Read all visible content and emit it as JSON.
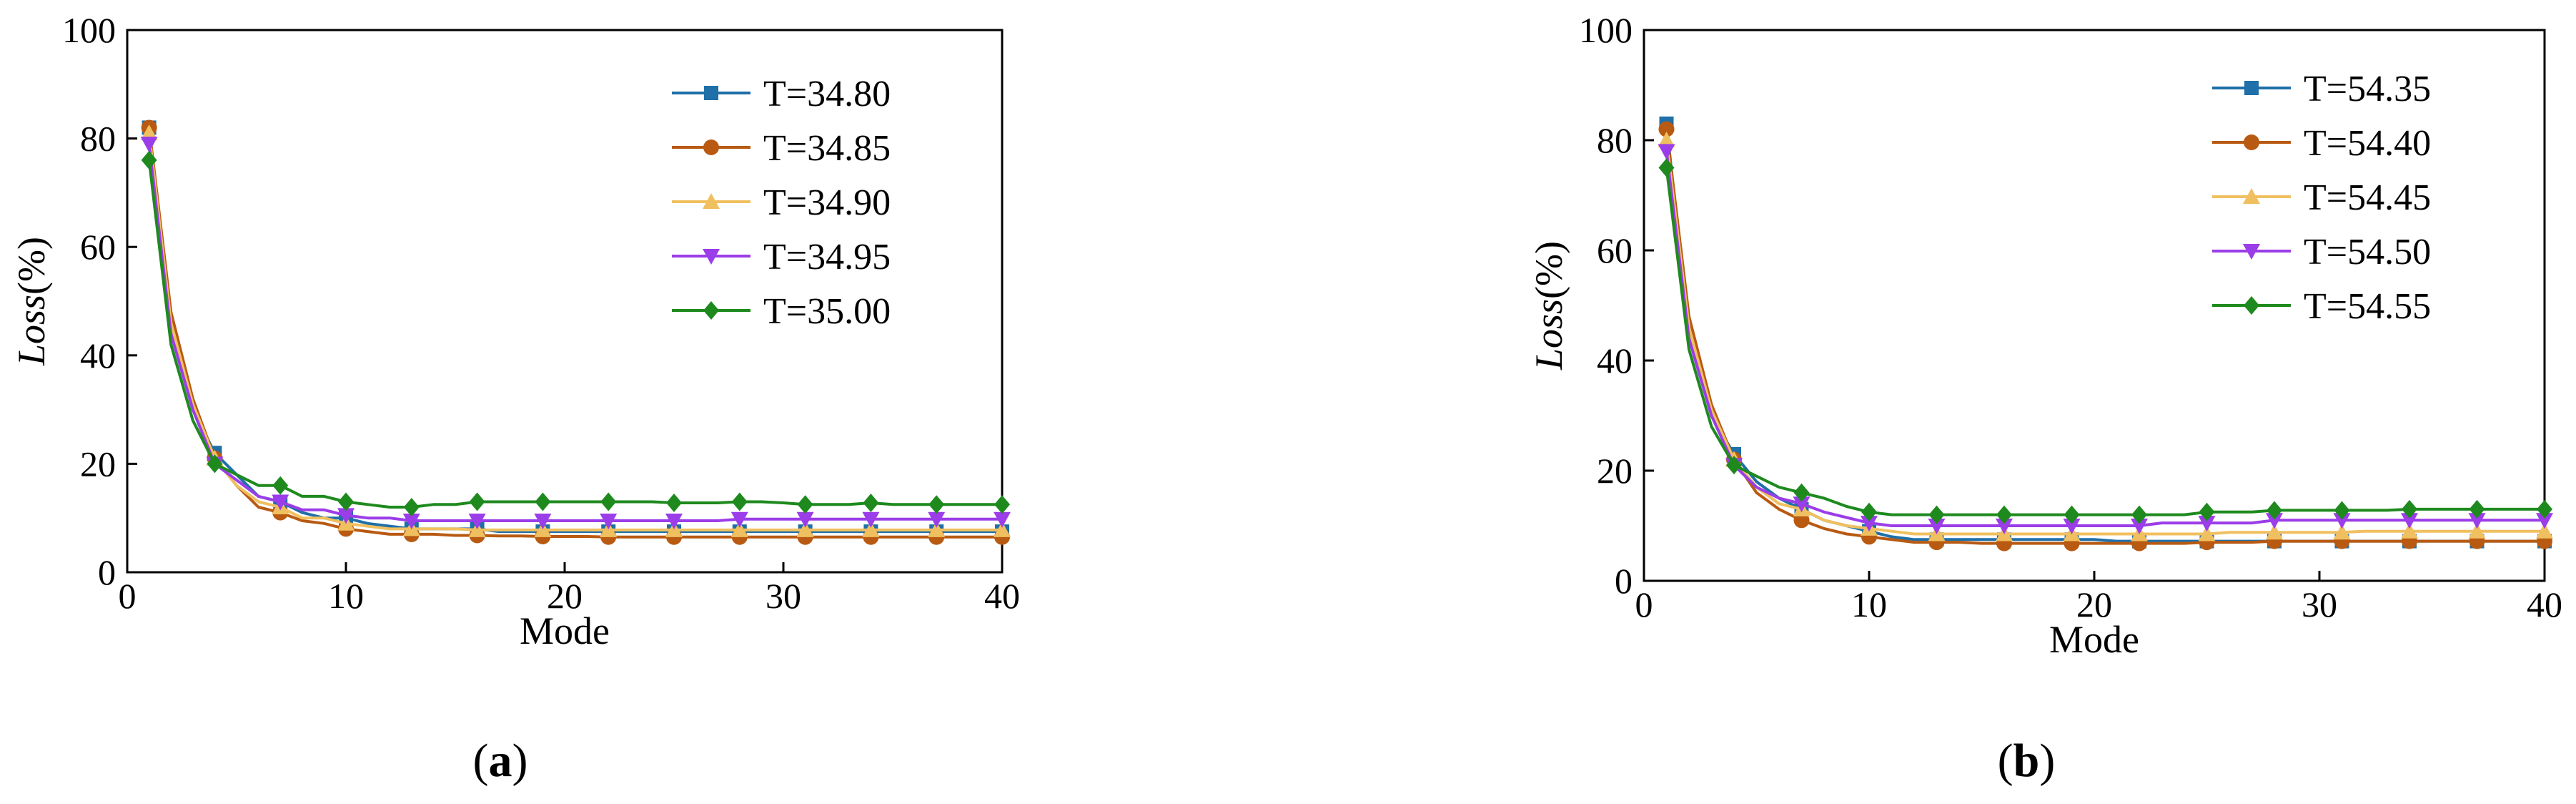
{
  "chart_data": [
    {
      "type": "line",
      "caption": {
        "open": "(",
        "letter": "a",
        "close": ")"
      },
      "xlabel": "Mode",
      "ylabel": {
        "italic": "Loss",
        "rest": "(%)"
      },
      "xlim": [
        0,
        40
      ],
      "ylim": [
        0,
        100
      ],
      "xticks": [
        0,
        10,
        20,
        30,
        40
      ],
      "yticks": [
        0,
        20,
        40,
        60,
        80,
        100
      ],
      "legend_position": "top-right",
      "series": [
        {
          "name": "T=34.80",
          "color": "#1f6fa8",
          "marker": "square",
          "x": [
            1,
            2,
            3,
            4,
            5,
            6,
            7,
            8,
            9,
            10,
            11,
            12,
            13,
            14,
            15,
            16,
            17,
            18,
            19,
            20,
            21,
            22,
            23,
            24,
            25,
            26,
            27,
            28,
            29,
            30,
            31,
            32,
            33,
            34,
            35,
            36,
            37,
            38,
            39,
            40
          ],
          "y": [
            82,
            45,
            30,
            22,
            18,
            14,
            13,
            11,
            10,
            10,
            9,
            8.5,
            8,
            8,
            8,
            8,
            7.5,
            7.5,
            7.5,
            7.5,
            7.5,
            7.5,
            7.5,
            7.5,
            7.5,
            7.5,
            7.5,
            7.5,
            7.5,
            7.5,
            7.5,
            7.5,
            7.5,
            7.5,
            7.5,
            7.5,
            7.5,
            7.5,
            7.5,
            7.5
          ]
        },
        {
          "name": "T=34.85",
          "color": "#b85a12",
          "marker": "circle",
          "x": [
            1,
            2,
            3,
            4,
            5,
            6,
            7,
            8,
            9,
            10,
            11,
            12,
            13,
            14,
            15,
            16,
            17,
            18,
            19,
            20,
            21,
            22,
            23,
            24,
            25,
            26,
            27,
            28,
            29,
            30,
            31,
            32,
            33,
            34,
            35,
            36,
            37,
            38,
            39,
            40
          ],
          "y": [
            82,
            48,
            32,
            21,
            16,
            12,
            11,
            9.5,
            9,
            8,
            7.5,
            7,
            7,
            7,
            6.8,
            6.8,
            6.7,
            6.7,
            6.6,
            6.6,
            6.6,
            6.5,
            6.5,
            6.5,
            6.5,
            6.5,
            6.5,
            6.5,
            6.5,
            6.5,
            6.5,
            6.5,
            6.5,
            6.5,
            6.5,
            6.5,
            6.5,
            6.5,
            6.5,
            6.5
          ]
        },
        {
          "name": "T=34.90",
          "color": "#f0c060",
          "marker": "triangle-up",
          "x": [
            1,
            2,
            3,
            4,
            5,
            6,
            7,
            8,
            9,
            10,
            11,
            12,
            13,
            14,
            15,
            16,
            17,
            18,
            19,
            20,
            21,
            22,
            23,
            24,
            25,
            26,
            27,
            28,
            29,
            30,
            31,
            32,
            33,
            34,
            35,
            36,
            37,
            38,
            39,
            40
          ],
          "y": [
            81,
            46,
            31,
            21,
            16,
            13,
            12,
            10,
            10,
            9,
            8.5,
            8,
            8,
            8,
            8,
            7.8,
            7.8,
            7.8,
            7.8,
            7.8,
            7.8,
            7.8,
            7.8,
            7.8,
            7.8,
            7.8,
            7.8,
            7.8,
            7.8,
            7.8,
            7.8,
            7.8,
            7.8,
            7.8,
            7.8,
            7.8,
            7.8,
            7.8,
            7.8,
            7.8
          ]
        },
        {
          "name": "T=34.95",
          "color": "#9b3de8",
          "marker": "triangle-down",
          "x": [
            1,
            2,
            3,
            4,
            5,
            6,
            7,
            8,
            9,
            10,
            11,
            12,
            13,
            14,
            15,
            16,
            17,
            18,
            19,
            20,
            21,
            22,
            23,
            24,
            25,
            26,
            27,
            28,
            29,
            30,
            31,
            32,
            33,
            34,
            35,
            36,
            37,
            38,
            39,
            40
          ],
          "y": [
            79,
            44,
            30,
            20,
            17,
            14,
            13,
            11.5,
            11.5,
            10.5,
            10,
            10,
            9.5,
            9.5,
            9.5,
            9.5,
            9.5,
            9.5,
            9.5,
            9.5,
            9.5,
            9.5,
            9.5,
            9.5,
            9.5,
            9.5,
            9.5,
            9.8,
            9.8,
            9.8,
            9.8,
            9.8,
            9.8,
            9.8,
            9.8,
            9.8,
            9.8,
            9.8,
            9.8,
            9.8
          ]
        },
        {
          "name": "T=35.00",
          "color": "#1e8a1e",
          "marker": "diamond",
          "x": [
            1,
            2,
            3,
            4,
            5,
            6,
            7,
            8,
            9,
            10,
            11,
            12,
            13,
            14,
            15,
            16,
            17,
            18,
            19,
            20,
            21,
            22,
            23,
            24,
            25,
            26,
            27,
            28,
            29,
            30,
            31,
            32,
            33,
            34,
            35,
            36,
            37,
            38,
            39,
            40
          ],
          "y": [
            76,
            42,
            28,
            20,
            18,
            16,
            16,
            14,
            14,
            13,
            12.5,
            12,
            12,
            12.5,
            12.5,
            13,
            13,
            13,
            13,
            13,
            13,
            13,
            13,
            13,
            12.8,
            12.8,
            12.8,
            13,
            13,
            12.8,
            12.5,
            12.5,
            12.5,
            12.8,
            12.5,
            12.5,
            12.5,
            12.5,
            12.5,
            12.5
          ]
        }
      ]
    },
    {
      "type": "line",
      "caption": {
        "open": "(",
        "letter": "b",
        "close": ")"
      },
      "xlabel": "Mode",
      "ylabel": {
        "italic": "Loss",
        "rest": "(%)"
      },
      "xlim": [
        0,
        40
      ],
      "ylim": [
        0,
        100
      ],
      "xticks": [
        0,
        10,
        20,
        30,
        40
      ],
      "yticks": [
        0,
        20,
        40,
        60,
        80,
        100
      ],
      "legend_position": "top-right",
      "series": [
        {
          "name": "T=54.35",
          "color": "#1f6fa8",
          "marker": "square",
          "x": [
            1,
            2,
            3,
            4,
            5,
            6,
            7,
            8,
            9,
            10,
            11,
            12,
            13,
            14,
            15,
            16,
            17,
            18,
            19,
            20,
            21,
            22,
            23,
            24,
            25,
            26,
            27,
            28,
            29,
            30,
            31,
            32,
            33,
            34,
            35,
            36,
            37,
            38,
            39,
            40
          ],
          "y": [
            83,
            45,
            30,
            23,
            18,
            15,
            13,
            11,
            10,
            9,
            8,
            7.5,
            7.5,
            7.5,
            7.5,
            7.5,
            7.5,
            7.5,
            7.5,
            7.5,
            7.2,
            7.2,
            7.2,
            7.2,
            7.2,
            7.2,
            7.2,
            7.2,
            7.2,
            7.2,
            7.2,
            7.2,
            7.2,
            7.2,
            7.2,
            7.2,
            7.2,
            7.2,
            7.2,
            7.2
          ]
        },
        {
          "name": "T=54.40",
          "color": "#b85a12",
          "marker": "circle",
          "x": [
            1,
            2,
            3,
            4,
            5,
            6,
            7,
            8,
            9,
            10,
            11,
            12,
            13,
            14,
            15,
            16,
            17,
            18,
            19,
            20,
            21,
            22,
            23,
            24,
            25,
            26,
            27,
            28,
            29,
            30,
            31,
            32,
            33,
            34,
            35,
            36,
            37,
            38,
            39,
            40
          ],
          "y": [
            82,
            48,
            32,
            22,
            16,
            13,
            11,
            9.5,
            8.5,
            8,
            7.5,
            7,
            7,
            7,
            6.8,
            6.8,
            6.8,
            6.8,
            6.8,
            6.8,
            6.8,
            6.8,
            6.8,
            6.8,
            7,
            7,
            7,
            7.2,
            7.2,
            7.2,
            7.2,
            7.2,
            7.2,
            7.2,
            7.2,
            7.2,
            7.2,
            7.2,
            7.2,
            7.2
          ]
        },
        {
          "name": "T=54.45",
          "color": "#f0c060",
          "marker": "triangle-up",
          "x": [
            1,
            2,
            3,
            4,
            5,
            6,
            7,
            8,
            9,
            10,
            11,
            12,
            13,
            14,
            15,
            16,
            17,
            18,
            19,
            20,
            21,
            22,
            23,
            24,
            25,
            26,
            27,
            28,
            29,
            30,
            31,
            32,
            33,
            34,
            35,
            36,
            37,
            38,
            39,
            40
          ],
          "y": [
            80,
            46,
            31,
            22,
            17,
            14,
            13,
            11,
            10,
            9.5,
            9,
            8.5,
            8.5,
            8.5,
            8.5,
            8.5,
            8.5,
            8.5,
            8.5,
            8.5,
            8.5,
            8.5,
            8.5,
            8.5,
            8.5,
            8.8,
            8.8,
            8.8,
            8.8,
            8.8,
            8.8,
            9,
            9,
            9,
            9,
            9,
            9,
            9,
            9,
            9
          ]
        },
        {
          "name": "T=54.50",
          "color": "#9b3de8",
          "marker": "triangle-down",
          "x": [
            1,
            2,
            3,
            4,
            5,
            6,
            7,
            8,
            9,
            10,
            11,
            12,
            13,
            14,
            15,
            16,
            17,
            18,
            19,
            20,
            21,
            22,
            23,
            24,
            25,
            26,
            27,
            28,
            29,
            30,
            31,
            32,
            33,
            34,
            35,
            36,
            37,
            38,
            39,
            40
          ],
          "y": [
            78,
            44,
            30,
            21,
            17,
            15,
            14,
            12.5,
            11.5,
            10.5,
            10,
            10,
            10,
            10,
            10,
            10,
            10,
            10,
            10,
            10,
            10,
            10,
            10.5,
            10.5,
            10.5,
            10.5,
            10.5,
            11,
            11,
            11,
            11,
            11,
            11,
            11,
            11,
            11,
            11,
            11,
            11,
            11
          ]
        },
        {
          "name": "T=54.55",
          "color": "#1e8a1e",
          "marker": "diamond",
          "x": [
            1,
            2,
            3,
            4,
            5,
            6,
            7,
            8,
            9,
            10,
            11,
            12,
            13,
            14,
            15,
            16,
            17,
            18,
            19,
            20,
            21,
            22,
            23,
            24,
            25,
            26,
            27,
            28,
            29,
            30,
            31,
            32,
            33,
            34,
            35,
            36,
            37,
            38,
            39,
            40
          ],
          "y": [
            75,
            42,
            28,
            21,
            19,
            17,
            16,
            15,
            13.5,
            12.5,
            12,
            12,
            12,
            12,
            12,
            12,
            12,
            12,
            12,
            12,
            12,
            12,
            12,
            12,
            12.5,
            12.5,
            12.5,
            12.8,
            12.8,
            12.8,
            12.8,
            12.8,
            12.8,
            13,
            13,
            13,
            13,
            13,
            13,
            13
          ]
        }
      ]
    }
  ]
}
